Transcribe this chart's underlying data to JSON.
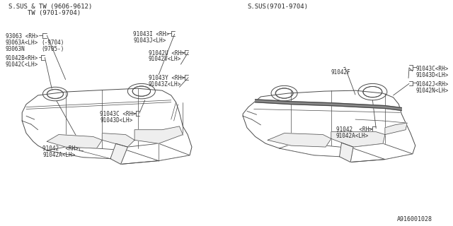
{
  "bg_color": "#ffffff",
  "line_color": "#4a4a4a",
  "text_color": "#2a2a2a",
  "title_left1": "S.SUS & TW (9606-9612)",
  "title_left2": "     TW (9701-9704)",
  "title_right": "S.SUS(9701-9704)",
  "footer": "A916001028",
  "font_size": 5.5,
  "title_font_size": 6.5,
  "footer_font_size": 6.0
}
